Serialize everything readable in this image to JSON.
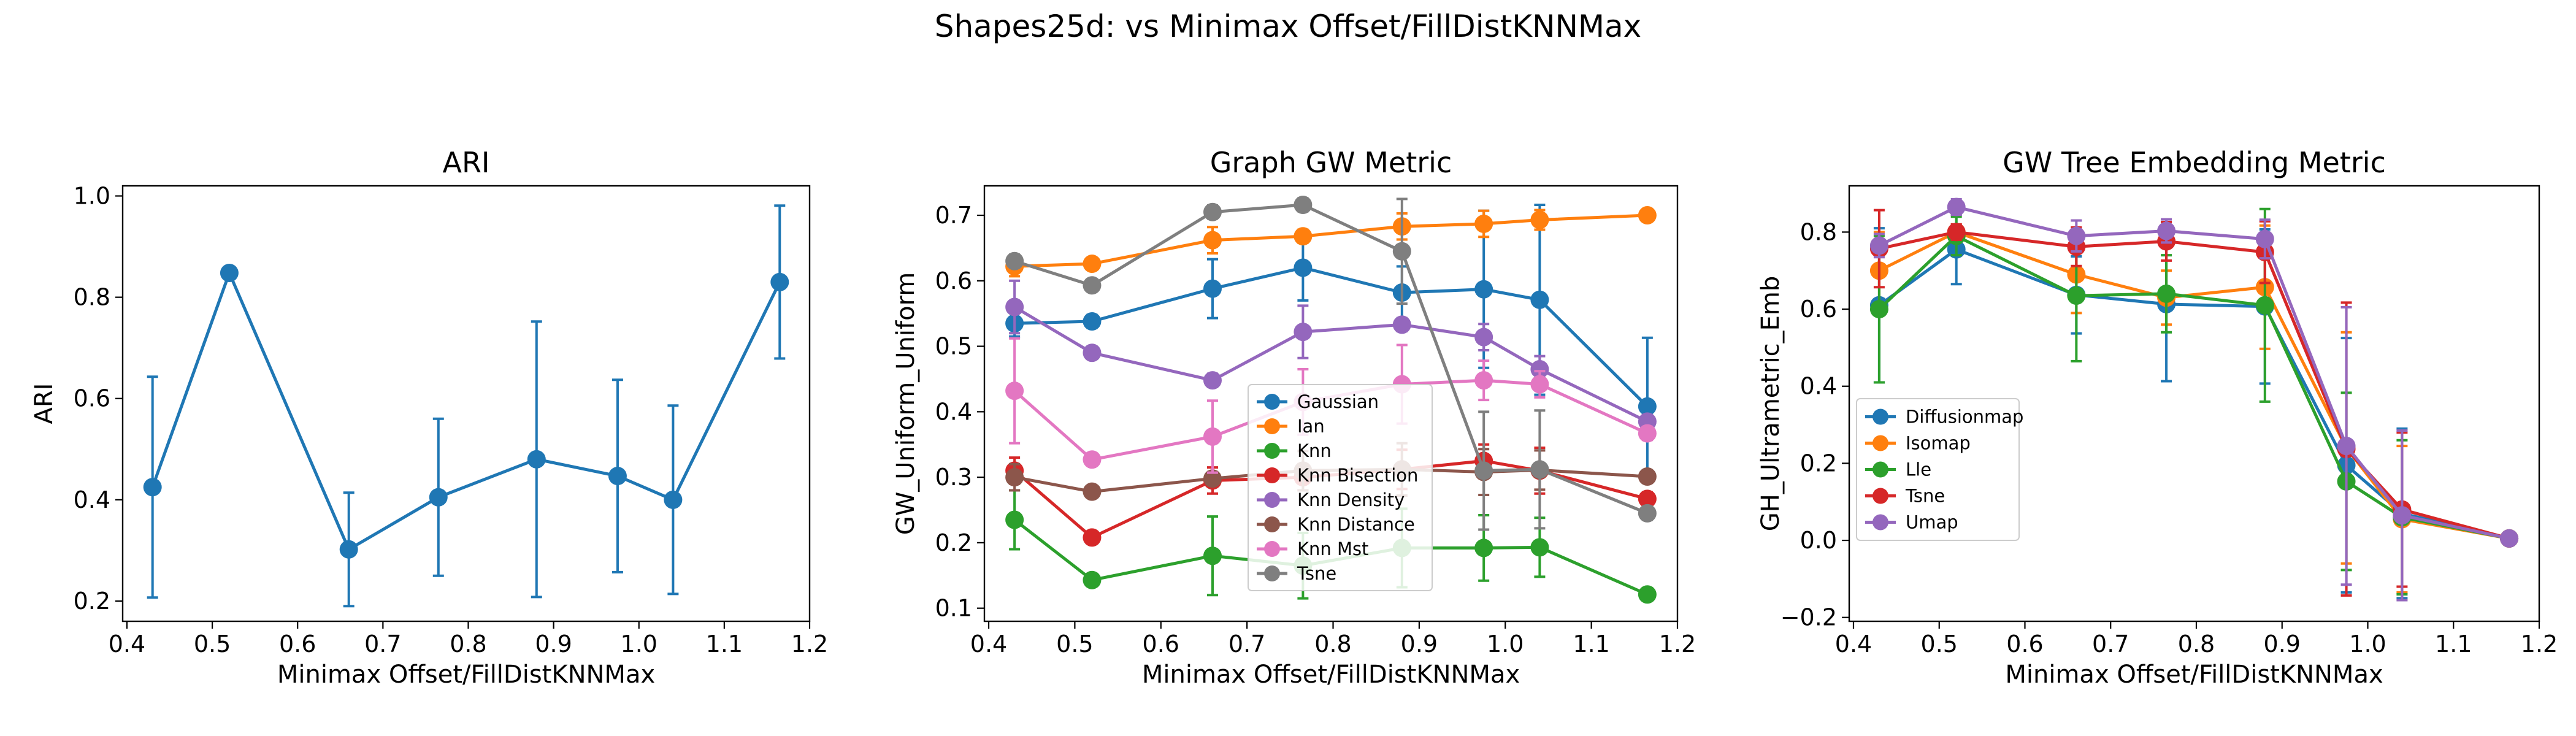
{
  "figure": {
    "suptitle": "Shapes25d: vs Minimax Offset/FillDistKNNMax"
  },
  "chart_data": [
    {
      "type": "line",
      "title": "ARI",
      "xlabel": "Minimax Offset/FillDistKNNMax",
      "ylabel": "ARI",
      "xlim": [
        0.395,
        1.2
      ],
      "ylim": [
        0.16,
        1.02
      ],
      "xticks": [
        0.4,
        0.5,
        0.6,
        0.7,
        0.8,
        0.9,
        1.0,
        1.1,
        1.2
      ],
      "xtick_labels": [
        "0.4",
        "0.5",
        "0.6",
        "0.7",
        "0.8",
        "0.9",
        "1.0",
        "1.1",
        "1.2"
      ],
      "yticks": [
        0.2,
        0.4,
        0.6,
        0.8,
        1.0
      ],
      "ytick_labels": [
        "0.2",
        "0.4",
        "0.6",
        "0.8",
        "1.0"
      ],
      "x": [
        0.43,
        0.52,
        0.66,
        0.765,
        0.88,
        0.975,
        1.04,
        1.165
      ],
      "series": [
        {
          "name": "ARI",
          "color": "#1f77b4",
          "values": [
            0.425,
            0.848,
            0.302,
            0.405,
            0.48,
            0.447,
            0.4,
            0.83
          ],
          "errors": [
            0.218,
            0,
            0.112,
            0.155,
            0.272,
            0.19,
            0.186,
            0.151
          ]
        }
      ]
    },
    {
      "type": "line",
      "title": "Graph GW Metric",
      "xlabel": "Minimax Offset/FillDistKNNMax",
      "ylabel": "GW_Uniform_Uniform",
      "xlim": [
        0.395,
        1.2
      ],
      "ylim": [
        0.08,
        0.745
      ],
      "xticks": [
        0.4,
        0.5,
        0.6,
        0.7,
        0.8,
        0.9,
        1.0,
        1.1,
        1.2
      ],
      "xtick_labels": [
        "0.4",
        "0.5",
        "0.6",
        "0.7",
        "0.8",
        "0.9",
        "1.0",
        "1.1",
        "1.2"
      ],
      "yticks": [
        0.1,
        0.2,
        0.3,
        0.4,
        0.5,
        0.6,
        0.7
      ],
      "ytick_labels": [
        "0.1",
        "0.2",
        "0.3",
        "0.4",
        "0.5",
        "0.6",
        "0.7"
      ],
      "legend_position": "lower-center",
      "x": [
        0.43,
        0.52,
        0.66,
        0.765,
        0.88,
        0.975,
        1.04,
        1.165
      ],
      "series": [
        {
          "name": "Gaussian",
          "color": "#1f77b4",
          "values": [
            0.535,
            0.538,
            0.588,
            0.62,
            0.582,
            0.587,
            0.571,
            0.408
          ],
          "errors": [
            0.02,
            0.01,
            0.045,
            0.05,
            0.04,
            0.12,
            0.145,
            0.105
          ]
        },
        {
          "name": "Ian",
          "color": "#ff7f0e",
          "values": [
            0.622,
            0.626,
            0.662,
            0.668,
            0.683,
            0.687,
            0.693,
            0.7
          ],
          "errors": [
            0.015,
            0.005,
            0.02,
            0.01,
            0.02,
            0.02,
            0.015,
            0.005
          ]
        },
        {
          "name": "Knn",
          "color": "#2ca02c",
          "values": [
            0.235,
            0.143,
            0.18,
            0.165,
            0.192,
            0.192,
            0.193,
            0.121
          ],
          "errors": [
            0.045,
            0.005,
            0.06,
            0.05,
            0.06,
            0.05,
            0.045,
            0.005
          ]
        },
        {
          "name": "Knn Bisection",
          "color": "#d62728",
          "values": [
            0.31,
            0.208,
            0.295,
            0.3,
            0.312,
            0.325,
            0.31,
            0.267
          ],
          "errors": [
            0.02,
            0.005,
            0.02,
            0.02,
            0.03,
            0.025,
            0.035,
            0.01
          ]
        },
        {
          "name": "Knn Density",
          "color": "#9467bd",
          "values": [
            0.56,
            0.49,
            0.448,
            0.522,
            0.533,
            0.514,
            0.465,
            0.385
          ],
          "errors": [
            0.04,
            0.005,
            0.01,
            0.04,
            0.01,
            0.02,
            0.02,
            0.01
          ]
        },
        {
          "name": "Knn Distance",
          "color": "#8c564b",
          "values": [
            0.3,
            0.278,
            0.298,
            0.31,
            0.312,
            0.308,
            0.311,
            0.301
          ],
          "errors": [
            0.02,
            0.005,
            0.01,
            0.03,
            0.04,
            0.035,
            0.03,
            0.005
          ]
        },
        {
          "name": "Knn Mst",
          "color": "#e377c2",
          "values": [
            0.432,
            0.327,
            0.362,
            0.415,
            0.442,
            0.448,
            0.442,
            0.367
          ],
          "errors": [
            0.08,
            0.005,
            0.055,
            0.05,
            0.06,
            0.03,
            0.02,
            0.01
          ]
        },
        {
          "name": "Tsne",
          "color": "#7f7f7f",
          "values": [
            0.63,
            0.593,
            0.705,
            0.716,
            0.645,
            0.31,
            0.312,
            0.245
          ],
          "errors": [
            0.01,
            0.005,
            0.01,
            0.01,
            0.08,
            0.09,
            0.09,
            0.01
          ]
        }
      ]
    },
    {
      "type": "line",
      "title": "GW Tree Embedding Metric",
      "xlabel": "Minimax Offset/FillDistKNNMax",
      "ylabel": "GH_Ultrametric_Emb",
      "xlim": [
        0.395,
        1.2
      ],
      "ylim": [
        -0.21,
        0.92
      ],
      "xticks": [
        0.4,
        0.5,
        0.6,
        0.7,
        0.8,
        0.9,
        1.0,
        1.1,
        1.2
      ],
      "xtick_labels": [
        "0.4",
        "0.5",
        "0.6",
        "0.7",
        "0.8",
        "0.9",
        "1.0",
        "1.1",
        "1.2"
      ],
      "yticks": [
        -0.2,
        0.0,
        0.2,
        0.4,
        0.6,
        0.8
      ],
      "ytick_labels": [
        "−0.2",
        "0.0",
        "0.2",
        "0.4",
        "0.6",
        "0.8"
      ],
      "legend_position": "lower-left",
      "x": [
        0.43,
        0.52,
        0.66,
        0.765,
        0.88,
        0.975,
        1.04,
        1.165
      ],
      "series": [
        {
          "name": "Diffusionmap",
          "color": "#1f77b4",
          "values": [
            0.61,
            0.755,
            0.637,
            0.613,
            0.607,
            0.195,
            0.07,
            0.005
          ],
          "errors": [
            0.2,
            0.09,
            0.1,
            0.2,
            0.2,
            0.33,
            0.22,
            0.005
          ]
        },
        {
          "name": "Isomap",
          "color": "#ff7f0e",
          "values": [
            0.7,
            0.8,
            0.69,
            0.63,
            0.657,
            0.24,
            0.055,
            0.005
          ],
          "errors": [
            0.1,
            0.02,
            0.1,
            0.07,
            0.16,
            0.3,
            0.19,
            0.005
          ]
        },
        {
          "name": "Lle",
          "color": "#2ca02c",
          "values": [
            0.6,
            0.79,
            0.635,
            0.64,
            0.61,
            0.153,
            0.06,
            0.005
          ],
          "errors": [
            0.19,
            0.05,
            0.17,
            0.1,
            0.25,
            0.23,
            0.2,
            0.005
          ]
        },
        {
          "name": "Tsne",
          "color": "#d62728",
          "values": [
            0.757,
            0.8,
            0.762,
            0.776,
            0.748,
            0.237,
            0.08,
            0.005
          ],
          "errors": [
            0.1,
            0.02,
            0.05,
            0.05,
            0.08,
            0.38,
            0.2,
            0.005
          ]
        },
        {
          "name": "Umap",
          "color": "#9467bd",
          "values": [
            0.765,
            0.865,
            0.79,
            0.803,
            0.782,
            0.245,
            0.065,
            0.005
          ],
          "errors": [
            0.03,
            0.02,
            0.04,
            0.03,
            0.05,
            0.36,
            0.22,
            0.005
          ]
        }
      ]
    }
  ]
}
